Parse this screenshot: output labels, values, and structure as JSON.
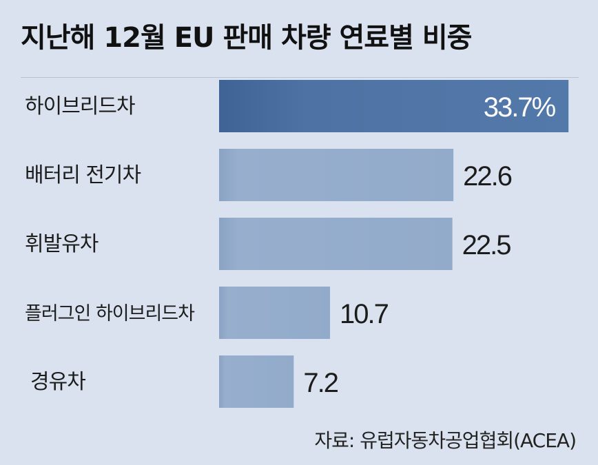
{
  "chart_data": {
    "type": "bar",
    "orientation": "horizontal",
    "title": "지난해 12월 EU 판매 차량 연료별 비중",
    "categories": [
      "하이브리드차",
      "배터리 전기차",
      "휘발유차",
      "플러그인 하이브리드차",
      "경유차"
    ],
    "values": [
      33.7,
      22.6,
      22.5,
      10.7,
      7.2
    ],
    "value_labels": [
      "33.7%",
      "22.6",
      "22.5",
      "10.7",
      "7.2"
    ],
    "highlight_index": 0,
    "colors": {
      "highlight": "#4e72a3",
      "bar": "#93abca",
      "background": "#d9e2ee"
    },
    "grid": false,
    "legend": "none",
    "source": "자료: 유럽자동차공업협회(ACEA)"
  }
}
